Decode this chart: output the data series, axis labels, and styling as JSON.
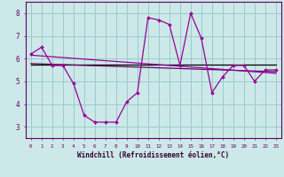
{
  "x": [
    0,
    1,
    2,
    3,
    4,
    5,
    6,
    7,
    8,
    9,
    10,
    11,
    12,
    13,
    14,
    15,
    16,
    17,
    18,
    19,
    20,
    21,
    22,
    23
  ],
  "y_main": [
    6.2,
    6.5,
    5.7,
    5.7,
    4.9,
    3.5,
    3.2,
    3.2,
    3.2,
    4.1,
    4.5,
    7.8,
    7.7,
    7.5,
    5.7,
    8.0,
    6.9,
    4.5,
    5.2,
    5.7,
    5.7,
    5.0,
    5.5,
    5.5
  ],
  "bg_color": "#cce8e8",
  "grid_color": "#99cccc",
  "line_color": "#990099",
  "trend_colors": [
    "#990099",
    "#660066",
    "#000000"
  ],
  "xlabel": "Windchill (Refroidissement éolien,°C)",
  "ylim": [
    2.5,
    8.5
  ],
  "xlim": [
    -0.5,
    23.5
  ],
  "yticks": [
    3,
    4,
    5,
    6,
    7,
    8
  ],
  "xticks": [
    0,
    1,
    2,
    3,
    4,
    5,
    6,
    7,
    8,
    9,
    10,
    11,
    12,
    13,
    14,
    15,
    16,
    17,
    18,
    19,
    20,
    21,
    22,
    23
  ],
  "trend1_start": 5.73,
  "trend1_end": 5.73,
  "trend2_start": 5.78,
  "trend2_end": 5.42,
  "trend3_start": 6.15,
  "trend3_end": 5.35
}
